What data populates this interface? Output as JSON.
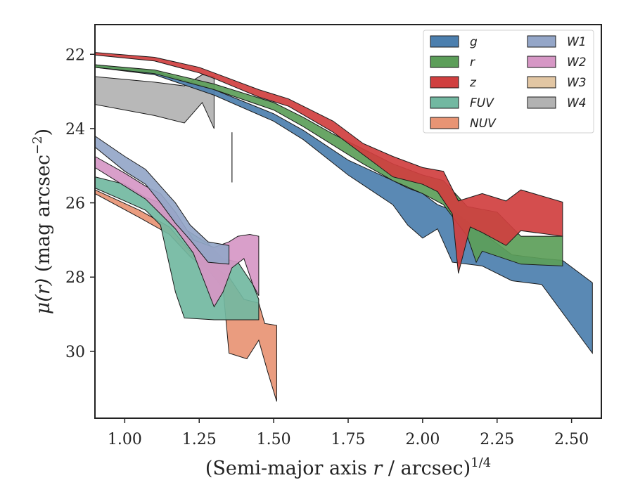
{
  "chart_data": {
    "type": "area",
    "xlabel": "(Semi-major axis r / arcsec)",
    "xlabel_prefix": "(Semi-major axis ",
    "xlabel_var": "r",
    "xlabel_suffix": " / arcsec)",
    "xlabel_sup": "1/4",
    "ylabel": "μ(r) (mag arcsec⁻²)",
    "ylabel_var": "μ(r)",
    "ylabel_unit": " (mag arcsec",
    "ylabel_sup": "−2",
    "ylabel_end": ")",
    "xlim": [
      0.9,
      2.6
    ],
    "ylim": [
      31.8,
      21.2
    ],
    "y_inverted": true,
    "xticks": [
      "1.00",
      "1.25",
      "1.50",
      "1.75",
      "2.00",
      "2.25",
      "2.50"
    ],
    "yticks": [
      "22",
      "24",
      "26",
      "28",
      "30"
    ],
    "legend_position": "top-right",
    "legend_columns": 2,
    "marker_line": {
      "x": 1.36,
      "y": [
        24.1,
        25.45
      ]
    },
    "series": [
      {
        "name": "g",
        "color": "#4c7fae",
        "upper": [
          [
            0.9,
            22.28
          ],
          [
            1.1,
            22.45
          ],
          [
            1.3,
            22.95
          ],
          [
            1.5,
            23.6
          ],
          [
            1.6,
            24.05
          ],
          [
            1.75,
            24.85
          ],
          [
            1.9,
            25.4
          ],
          [
            1.95,
            25.6
          ],
          [
            2.0,
            25.75
          ],
          [
            2.05,
            26.05
          ],
          [
            2.1,
            26.2
          ],
          [
            2.2,
            26.8
          ],
          [
            2.3,
            27.4
          ],
          [
            2.4,
            27.5
          ],
          [
            2.47,
            27.55
          ],
          [
            2.57,
            28.15
          ]
        ],
        "lower": [
          [
            0.9,
            22.35
          ],
          [
            1.1,
            22.55
          ],
          [
            1.3,
            23.1
          ],
          [
            1.5,
            23.8
          ],
          [
            1.6,
            24.3
          ],
          [
            1.75,
            25.25
          ],
          [
            1.9,
            26.05
          ],
          [
            1.95,
            26.6
          ],
          [
            2.0,
            26.95
          ],
          [
            2.05,
            26.7
          ],
          [
            2.1,
            27.6
          ],
          [
            2.2,
            27.7
          ],
          [
            2.3,
            28.1
          ],
          [
            2.4,
            28.2
          ],
          [
            2.57,
            30.05
          ]
        ]
      },
      {
        "name": "r",
        "color": "#5c9e59",
        "upper": [
          [
            0.9,
            22.28
          ],
          [
            1.1,
            22.42
          ],
          [
            1.3,
            22.8
          ],
          [
            1.5,
            23.3
          ],
          [
            1.6,
            23.7
          ],
          [
            1.7,
            24.15
          ],
          [
            1.8,
            24.55
          ],
          [
            1.9,
            24.95
          ],
          [
            2.0,
            25.25
          ],
          [
            2.07,
            25.4
          ],
          [
            2.15,
            26.1
          ],
          [
            2.25,
            26.25
          ],
          [
            2.33,
            26.9
          ],
          [
            2.47,
            26.9
          ]
        ],
        "lower": [
          [
            0.9,
            22.35
          ],
          [
            1.1,
            22.52
          ],
          [
            1.3,
            22.95
          ],
          [
            1.5,
            23.5
          ],
          [
            1.6,
            23.95
          ],
          [
            1.7,
            24.45
          ],
          [
            1.8,
            24.95
          ],
          [
            1.9,
            25.4
          ],
          [
            2.0,
            25.75
          ],
          [
            2.07,
            26.05
          ],
          [
            2.15,
            26.9
          ],
          [
            2.18,
            27.6
          ],
          [
            2.2,
            27.3
          ],
          [
            2.33,
            27.65
          ],
          [
            2.47,
            27.7
          ]
        ]
      },
      {
        "name": "z",
        "color": "#d03f3f",
        "upper": [
          [
            0.9,
            21.95
          ],
          [
            1.1,
            22.08
          ],
          [
            1.25,
            22.35
          ],
          [
            1.3,
            22.5
          ],
          [
            1.45,
            22.95
          ],
          [
            1.55,
            23.2
          ],
          [
            1.7,
            23.8
          ],
          [
            1.8,
            24.4
          ],
          [
            1.9,
            24.75
          ],
          [
            2.0,
            25.05
          ],
          [
            2.07,
            25.15
          ],
          [
            2.12,
            25.95
          ],
          [
            2.2,
            25.75
          ],
          [
            2.28,
            25.95
          ],
          [
            2.33,
            25.65
          ],
          [
            2.47,
            25.98
          ]
        ],
        "lower": [
          [
            0.9,
            22.02
          ],
          [
            1.1,
            22.18
          ],
          [
            1.25,
            22.5
          ],
          [
            1.3,
            22.65
          ],
          [
            1.45,
            23.15
          ],
          [
            1.55,
            23.4
          ],
          [
            1.7,
            24.1
          ],
          [
            1.8,
            24.7
          ],
          [
            1.9,
            25.3
          ],
          [
            2.0,
            25.5
          ],
          [
            2.05,
            25.7
          ],
          [
            2.1,
            26.3
          ],
          [
            2.12,
            27.9
          ],
          [
            2.16,
            26.65
          ],
          [
            2.2,
            26.8
          ],
          [
            2.28,
            27.15
          ],
          [
            2.33,
            26.75
          ],
          [
            2.47,
            26.9
          ]
        ]
      },
      {
        "name": "FUV",
        "color": "#72b8a1",
        "upper": [
          [
            0.9,
            25.3
          ],
          [
            1.0,
            25.5
          ],
          [
            1.07,
            25.85
          ],
          [
            1.12,
            26.0
          ],
          [
            1.2,
            26.7
          ],
          [
            1.28,
            27.1
          ],
          [
            1.33,
            27.5
          ],
          [
            1.38,
            27.6
          ],
          [
            1.43,
            28.2
          ],
          [
            1.45,
            28.6
          ]
        ],
        "lower": [
          [
            0.9,
            25.6
          ],
          [
            1.0,
            25.95
          ],
          [
            1.07,
            26.2
          ],
          [
            1.12,
            26.6
          ],
          [
            1.17,
            28.4
          ],
          [
            1.2,
            29.1
          ],
          [
            1.3,
            29.15
          ],
          [
            1.45,
            29.15
          ]
        ]
      },
      {
        "name": "NUV",
        "color": "#e89474",
        "upper": [
          [
            0.9,
            25.65
          ],
          [
            1.05,
            26.2
          ],
          [
            1.15,
            26.65
          ],
          [
            1.22,
            27.3
          ],
          [
            1.28,
            27.6
          ],
          [
            1.35,
            28.0
          ],
          [
            1.4,
            28.6
          ],
          [
            1.45,
            28.7
          ],
          [
            1.47,
            29.25
          ],
          [
            1.51,
            29.3
          ]
        ],
        "lower": [
          [
            0.9,
            25.75
          ],
          [
            1.05,
            26.4
          ],
          [
            1.15,
            26.85
          ],
          [
            1.22,
            27.45
          ],
          [
            1.28,
            27.8
          ],
          [
            1.33,
            28.3
          ],
          [
            1.35,
            30.05
          ],
          [
            1.41,
            30.2
          ],
          [
            1.45,
            29.7
          ],
          [
            1.48,
            30.55
          ],
          [
            1.51,
            31.35
          ]
        ]
      },
      {
        "name": "W1",
        "color": "#94a6c8",
        "upper": [
          [
            0.9,
            24.2
          ],
          [
            1.0,
            24.75
          ],
          [
            1.07,
            25.1
          ],
          [
            1.12,
            25.55
          ],
          [
            1.17,
            26.0
          ],
          [
            1.22,
            26.6
          ],
          [
            1.28,
            27.05
          ],
          [
            1.35,
            27.15
          ]
        ],
        "lower": [
          [
            0.9,
            24.5
          ],
          [
            1.0,
            25.15
          ],
          [
            1.07,
            25.5
          ],
          [
            1.12,
            26.0
          ],
          [
            1.17,
            26.55
          ],
          [
            1.22,
            27.0
          ],
          [
            1.28,
            27.6
          ],
          [
            1.35,
            27.65
          ]
        ]
      },
      {
        "name": "W2",
        "color": "#d697c5",
        "upper": [
          [
            0.9,
            24.75
          ],
          [
            1.0,
            25.2
          ],
          [
            1.07,
            25.55
          ],
          [
            1.12,
            25.75
          ],
          [
            1.17,
            26.25
          ],
          [
            1.23,
            27.0
          ],
          [
            1.3,
            27.2
          ],
          [
            1.35,
            27.05
          ],
          [
            1.38,
            26.9
          ],
          [
            1.42,
            26.85
          ],
          [
            1.45,
            26.9
          ]
        ],
        "lower": [
          [
            0.9,
            25.05
          ],
          [
            1.0,
            25.55
          ],
          [
            1.07,
            25.9
          ],
          [
            1.12,
            26.3
          ],
          [
            1.17,
            26.7
          ],
          [
            1.23,
            27.35
          ],
          [
            1.3,
            28.8
          ],
          [
            1.33,
            28.4
          ],
          [
            1.36,
            27.75
          ],
          [
            1.4,
            27.5
          ],
          [
            1.43,
            28.2
          ],
          [
            1.45,
            28.5
          ]
        ]
      },
      {
        "name": "W3",
        "color": "#e2c6a3",
        "upper": [],
        "lower": []
      },
      {
        "name": "W4",
        "color": "#b2b2b2",
        "upper": [
          [
            0.9,
            22.6
          ],
          [
            1.1,
            22.75
          ],
          [
            1.2,
            22.85
          ],
          [
            1.24,
            22.65
          ],
          [
            1.26,
            22.55
          ],
          [
            1.3,
            22.6
          ]
        ],
        "lower": [
          [
            0.9,
            23.35
          ],
          [
            1.1,
            23.65
          ],
          [
            1.2,
            23.85
          ],
          [
            1.26,
            23.3
          ],
          [
            1.3,
            24.0
          ]
        ]
      }
    ]
  }
}
